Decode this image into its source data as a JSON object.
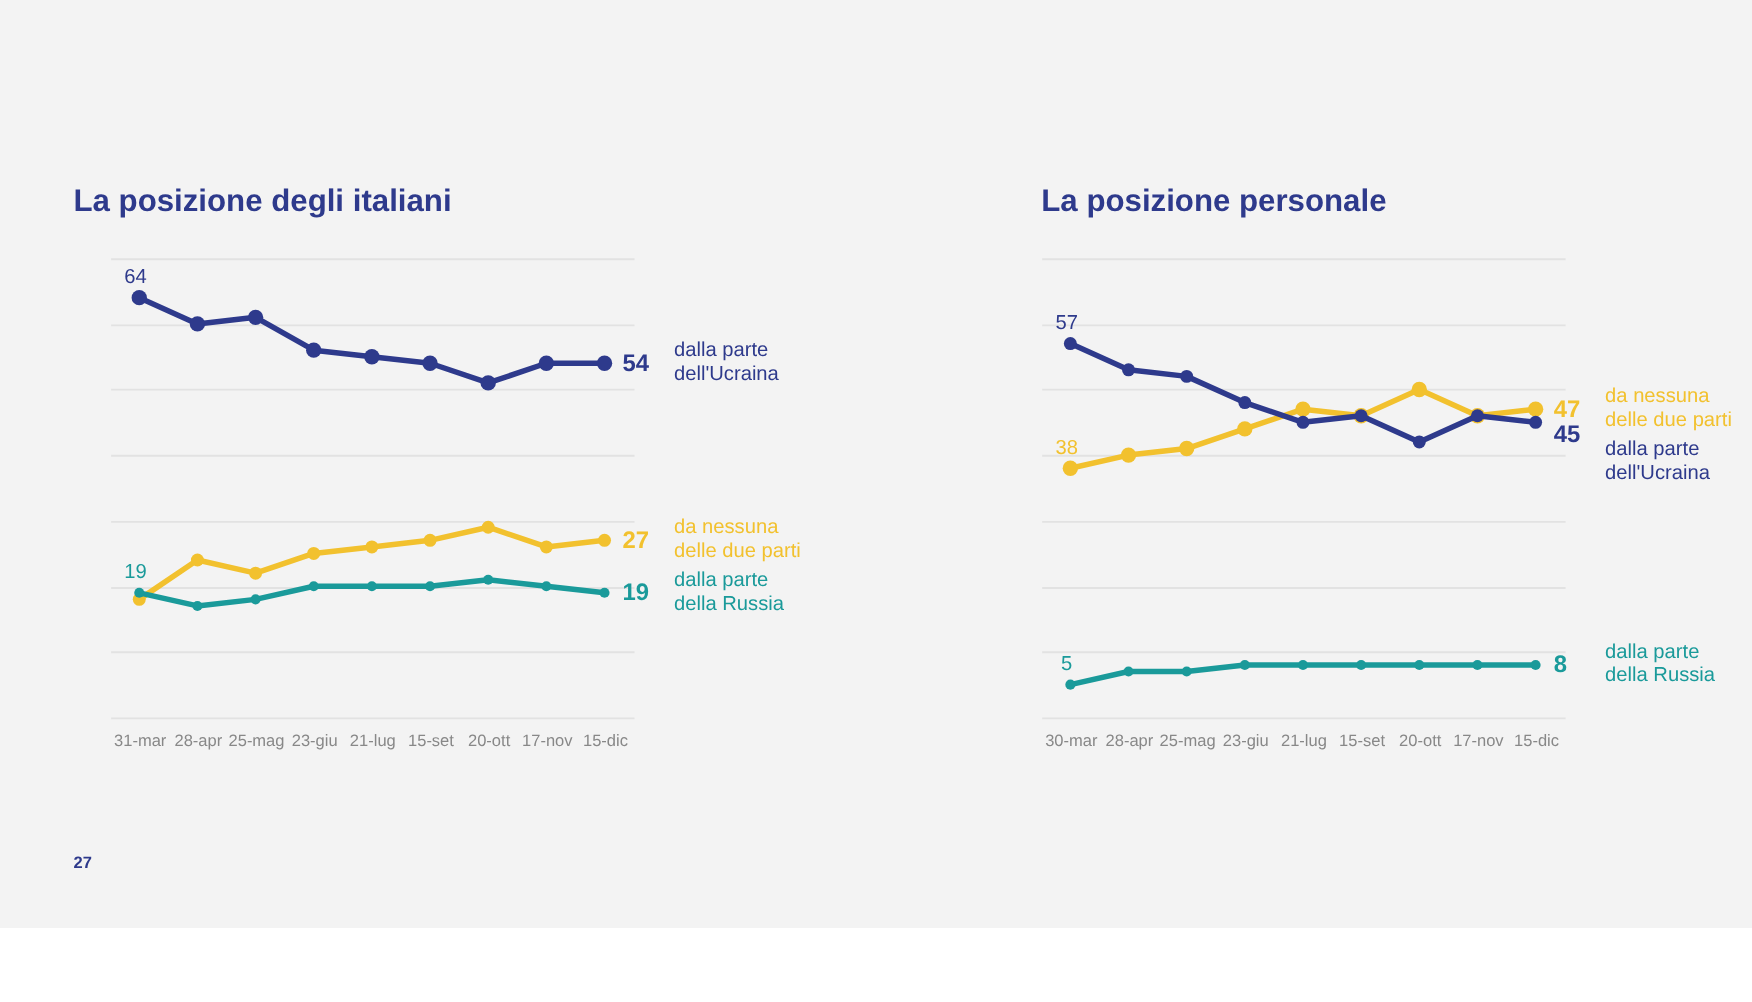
{
  "chart_data": [
    {
      "type": "line",
      "title": "La posizione degli italiani",
      "categories": [
        "31-mar",
        "28-apr",
        "25-mag",
        "23-giu",
        "21-lug",
        "15-set",
        "20-ott",
        "17-nov",
        "15-dic"
      ],
      "ylim": [
        0,
        70
      ],
      "grid": "y",
      "tick_labels": "x",
      "marker": "circle",
      "annotations": [
        "27"
      ],
      "series": [
        {
          "name": "dalla parte dell'Ucraina",
          "color": "#2e3a8c",
          "values": [
            64,
            60,
            61,
            56,
            55,
            54,
            51,
            54,
            54
          ],
          "value_labels": [
            "64",
            null,
            null,
            null,
            null,
            null,
            null,
            null,
            "54"
          ]
        },
        {
          "name": "da nessuna delle due parti",
          "color": "#f2c12e",
          "values": [
            18,
            24,
            22,
            25,
            26,
            27,
            29,
            26,
            27
          ],
          "value_labels": [
            null,
            null,
            null,
            null,
            null,
            null,
            null,
            null,
            "27"
          ]
        },
        {
          "name": "dalla parte della Russia",
          "color": "#1a9a9a",
          "values": [
            19,
            17,
            18,
            20,
            20,
            20,
            21,
            20,
            19
          ],
          "value_labels": [
            "19",
            null,
            null,
            null,
            null,
            null,
            null,
            null,
            "19"
          ]
        }
      ]
    },
    {
      "type": "line",
      "title": "La posizione personale",
      "categories": [
        "30-mar",
        "28-apr",
        "25-mag",
        "23-giu",
        "21-lug",
        "15-set",
        "20-ott",
        "17-nov",
        "15-dic"
      ],
      "ylim": [
        0,
        70
      ],
      "grid": "y",
      "tick_labels": "x",
      "marker": "circle",
      "series": [
        {
          "name": "da nessuna delle due parti",
          "color": "#f2c12e",
          "values": [
            38,
            40,
            41,
            44,
            47,
            46,
            50,
            46,
            47
          ],
          "value_labels": [
            "38",
            null,
            null,
            null,
            null,
            null,
            null,
            null,
            "47"
          ]
        },
        {
          "name": "dalla parte dell'Ucraina",
          "color": "#2e3a8c",
          "values": [
            57,
            53,
            52,
            48,
            45,
            46,
            42,
            46,
            45
          ],
          "value_labels": [
            "57",
            null,
            null,
            null,
            null,
            null,
            null,
            null,
            "45"
          ]
        },
        {
          "name": "dalla parte della Russia",
          "color": "#1a9a9a",
          "values": [
            5,
            7,
            7,
            8,
            8,
            8,
            8,
            8,
            8
          ],
          "value_labels": [
            "5",
            null,
            null,
            null,
            null,
            null,
            null,
            null,
            "8"
          ]
        }
      ]
    }
  ]
}
